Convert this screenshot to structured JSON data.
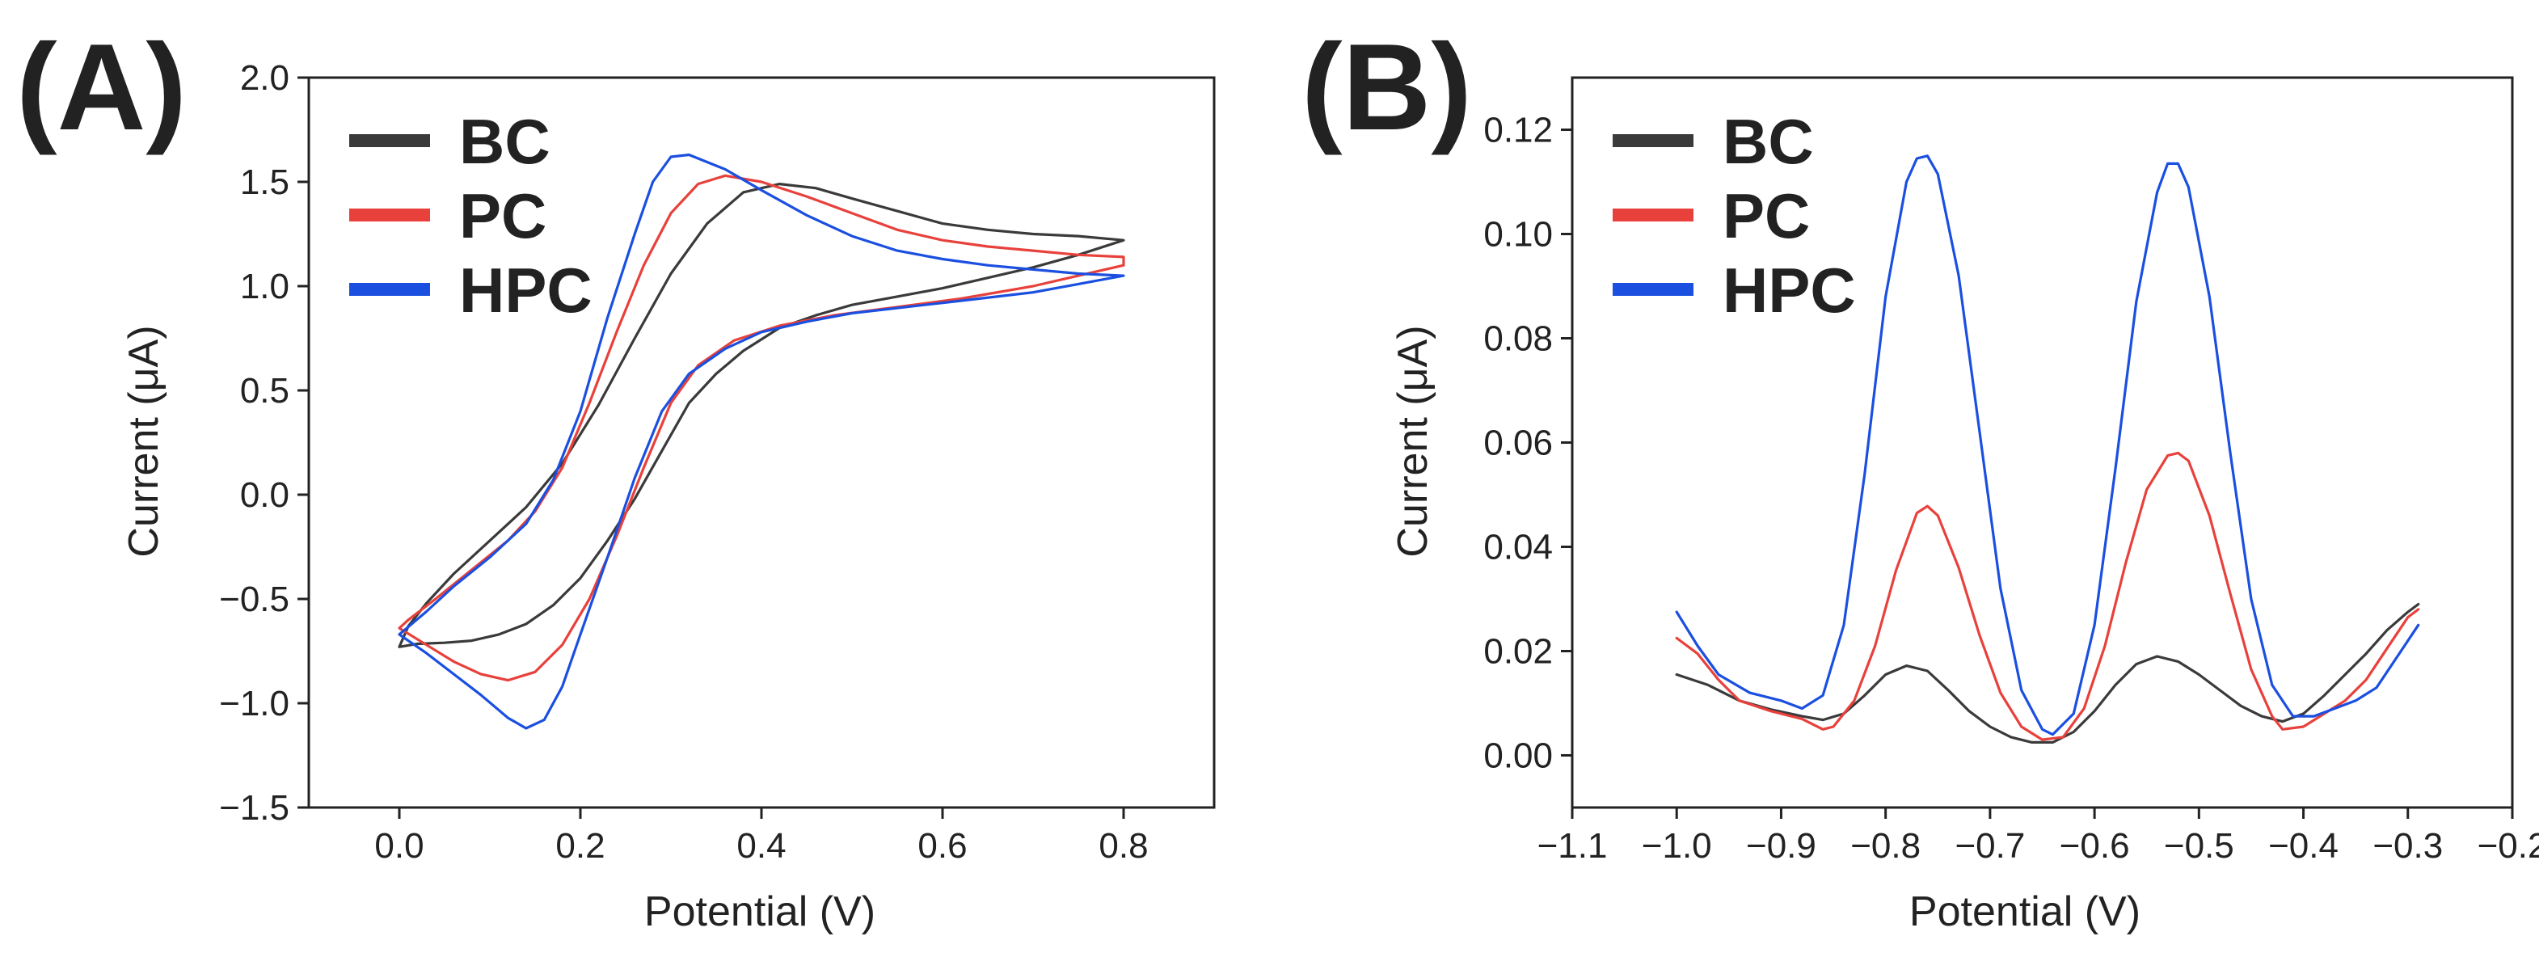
{
  "chart_data": [
    {
      "panel_label": "(A)",
      "type": "line",
      "xlabel": "Potential (V)",
      "ylabel": "Current (μA)",
      "xlim": [
        -0.1,
        0.9
      ],
      "ylim": [
        -1.5,
        2.0
      ],
      "xticks": [
        0.0,
        0.2,
        0.4,
        0.6,
        0.8
      ],
      "xtick_labels": [
        "0.0",
        "0.2",
        "0.4",
        "0.6",
        "0.8"
      ],
      "yticks": [
        -1.5,
        -1.0,
        -0.5,
        0.0,
        0.5,
        1.0,
        1.5,
        2.0
      ],
      "ytick_labels": [
        "−1.5",
        "−1.0",
        "−0.5",
        "0.0",
        "0.5",
        "1.0",
        "1.5",
        "2.0"
      ],
      "grid": false,
      "legend_position": "top-left",
      "series": [
        {
          "name": "BC",
          "color": "#3a3a3a",
          "points": [
            [
              0.0,
              -0.73
            ],
            [
              0.02,
              -0.715
            ],
            [
              0.05,
              -0.71
            ],
            [
              0.08,
              -0.7
            ],
            [
              0.11,
              -0.67
            ],
            [
              0.14,
              -0.62
            ],
            [
              0.17,
              -0.53
            ],
            [
              0.2,
              -0.4
            ],
            [
              0.23,
              -0.22
            ],
            [
              0.26,
              -0.02
            ],
            [
              0.29,
              0.21
            ],
            [
              0.32,
              0.44
            ],
            [
              0.35,
              0.58
            ],
            [
              0.38,
              0.69
            ],
            [
              0.42,
              0.8
            ],
            [
              0.46,
              0.86
            ],
            [
              0.5,
              0.91
            ],
            [
              0.55,
              0.95
            ],
            [
              0.6,
              0.99
            ],
            [
              0.65,
              1.04
            ],
            [
              0.7,
              1.09
            ],
            [
              0.75,
              1.15
            ],
            [
              0.8,
              1.22
            ],
            [
              0.8,
              1.22
            ],
            [
              0.75,
              1.24
            ],
            [
              0.7,
              1.25
            ],
            [
              0.65,
              1.27
            ],
            [
              0.6,
              1.3
            ],
            [
              0.55,
              1.36
            ],
            [
              0.5,
              1.42
            ],
            [
              0.46,
              1.47
            ],
            [
              0.42,
              1.49
            ],
            [
              0.38,
              1.45
            ],
            [
              0.34,
              1.3
            ],
            [
              0.3,
              1.06
            ],
            [
              0.26,
              0.75
            ],
            [
              0.22,
              0.43
            ],
            [
              0.18,
              0.15
            ],
            [
              0.14,
              -0.06
            ],
            [
              0.1,
              -0.22
            ],
            [
              0.06,
              -0.38
            ],
            [
              0.03,
              -0.52
            ],
            [
              0.01,
              -0.63
            ],
            [
              0.0,
              -0.73
            ]
          ]
        },
        {
          "name": "PC",
          "color": "#e8413c",
          "points": [
            [
              0.0,
              -0.64
            ],
            [
              0.03,
              -0.72
            ],
            [
              0.06,
              -0.8
            ],
            [
              0.09,
              -0.86
            ],
            [
              0.12,
              -0.89
            ],
            [
              0.15,
              -0.85
            ],
            [
              0.18,
              -0.72
            ],
            [
              0.21,
              -0.5
            ],
            [
              0.24,
              -0.2
            ],
            [
              0.27,
              0.13
            ],
            [
              0.3,
              0.44
            ],
            [
              0.33,
              0.62
            ],
            [
              0.37,
              0.74
            ],
            [
              0.42,
              0.81
            ],
            [
              0.48,
              0.86
            ],
            [
              0.55,
              0.9
            ],
            [
              0.62,
              0.94
            ],
            [
              0.7,
              1.0
            ],
            [
              0.75,
              1.05
            ],
            [
              0.8,
              1.1
            ],
            [
              0.8,
              1.14
            ],
            [
              0.75,
              1.15
            ],
            [
              0.7,
              1.17
            ],
            [
              0.65,
              1.19
            ],
            [
              0.6,
              1.22
            ],
            [
              0.55,
              1.27
            ],
            [
              0.5,
              1.35
            ],
            [
              0.45,
              1.43
            ],
            [
              0.4,
              1.5
            ],
            [
              0.36,
              1.53
            ],
            [
              0.33,
              1.49
            ],
            [
              0.3,
              1.35
            ],
            [
              0.27,
              1.1
            ],
            [
              0.24,
              0.78
            ],
            [
              0.21,
              0.44
            ],
            [
              0.18,
              0.13
            ],
            [
              0.15,
              -0.08
            ],
            [
              0.12,
              -0.22
            ],
            [
              0.08,
              -0.36
            ],
            [
              0.04,
              -0.5
            ],
            [
              0.01,
              -0.6
            ],
            [
              0.0,
              -0.64
            ]
          ]
        },
        {
          "name": "HPC",
          "color": "#1a4fe0",
          "points": [
            [
              0.0,
              -0.67
            ],
            [
              0.03,
              -0.76
            ],
            [
              0.06,
              -0.86
            ],
            [
              0.09,
              -0.96
            ],
            [
              0.12,
              -1.07
            ],
            [
              0.14,
              -1.12
            ],
            [
              0.16,
              -1.08
            ],
            [
              0.18,
              -0.92
            ],
            [
              0.2,
              -0.67
            ],
            [
              0.23,
              -0.3
            ],
            [
              0.26,
              0.08
            ],
            [
              0.29,
              0.4
            ],
            [
              0.32,
              0.58
            ],
            [
              0.36,
              0.7
            ],
            [
              0.4,
              0.78
            ],
            [
              0.45,
              0.83
            ],
            [
              0.5,
              0.87
            ],
            [
              0.56,
              0.9
            ],
            [
              0.62,
              0.93
            ],
            [
              0.7,
              0.97
            ],
            [
              0.75,
              1.01
            ],
            [
              0.8,
              1.05
            ],
            [
              0.8,
              1.05
            ],
            [
              0.75,
              1.06
            ],
            [
              0.7,
              1.08
            ],
            [
              0.65,
              1.1
            ],
            [
              0.6,
              1.13
            ],
            [
              0.55,
              1.17
            ],
            [
              0.5,
              1.24
            ],
            [
              0.45,
              1.34
            ],
            [
              0.4,
              1.46
            ],
            [
              0.36,
              1.56
            ],
            [
              0.32,
              1.63
            ],
            [
              0.3,
              1.62
            ],
            [
              0.28,
              1.5
            ],
            [
              0.26,
              1.25
            ],
            [
              0.23,
              0.85
            ],
            [
              0.2,
              0.4
            ],
            [
              0.17,
              0.07
            ],
            [
              0.14,
              -0.14
            ],
            [
              0.1,
              -0.3
            ],
            [
              0.06,
              -0.44
            ],
            [
              0.03,
              -0.56
            ],
            [
              0.0,
              -0.67
            ]
          ]
        }
      ]
    },
    {
      "panel_label": "(B)",
      "type": "line",
      "xlabel": "Potential (V)",
      "ylabel": "Current (μA)",
      "xlim": [
        -1.1,
        -0.2
      ],
      "ylim": [
        -0.01,
        0.13
      ],
      "xticks": [
        -1.1,
        -1.0,
        -0.9,
        -0.8,
        -0.7,
        -0.6,
        -0.5,
        -0.4,
        -0.3,
        -0.2
      ],
      "xtick_labels": [
        "−1.1",
        "−1.0",
        "−0.9",
        "−0.8",
        "−0.7",
        "−0.6",
        "−0.5",
        "−0.4",
        "−0.3",
        "−0.2"
      ],
      "yticks": [
        0.0,
        0.02,
        0.04,
        0.06,
        0.08,
        0.1,
        0.12
      ],
      "ytick_labels": [
        "0.00",
        "0.02",
        "0.04",
        "0.06",
        "0.08",
        "0.10",
        "0.12"
      ],
      "grid": false,
      "legend_position": "top-left",
      "series": [
        {
          "name": "BC",
          "color": "#3a3a3a",
          "points": [
            [
              -1.0,
              0.0155
            ],
            [
              -0.97,
              0.0135
            ],
            [
              -0.94,
              0.0105
            ],
            [
              -0.91,
              0.0088
            ],
            [
              -0.88,
              0.0075
            ],
            [
              -0.86,
              0.0068
            ],
            [
              -0.84,
              0.008
            ],
            [
              -0.82,
              0.0115
            ],
            [
              -0.8,
              0.0155
            ],
            [
              -0.78,
              0.0172
            ],
            [
              -0.76,
              0.0162
            ],
            [
              -0.74,
              0.0125
            ],
            [
              -0.72,
              0.0085
            ],
            [
              -0.7,
              0.0055
            ],
            [
              -0.68,
              0.0035
            ],
            [
              -0.66,
              0.0025
            ],
            [
              -0.64,
              0.0025
            ],
            [
              -0.62,
              0.0045
            ],
            [
              -0.6,
              0.0085
            ],
            [
              -0.58,
              0.0135
            ],
            [
              -0.56,
              0.0175
            ],
            [
              -0.54,
              0.019
            ],
            [
              -0.52,
              0.018
            ],
            [
              -0.5,
              0.0155
            ],
            [
              -0.48,
              0.0125
            ],
            [
              -0.46,
              0.0095
            ],
            [
              -0.44,
              0.0075
            ],
            [
              -0.42,
              0.0065
            ],
            [
              -0.4,
              0.008
            ],
            [
              -0.38,
              0.0115
            ],
            [
              -0.36,
              0.0155
            ],
            [
              -0.34,
              0.0195
            ],
            [
              -0.32,
              0.024
            ],
            [
              -0.3,
              0.0275
            ],
            [
              -0.29,
              0.029
            ]
          ]
        },
        {
          "name": "PC",
          "color": "#e8413c",
          "points": [
            [
              -1.0,
              0.0225
            ],
            [
              -0.98,
              0.0195
            ],
            [
              -0.96,
              0.0145
            ],
            [
              -0.94,
              0.0105
            ],
            [
              -0.91,
              0.0085
            ],
            [
              -0.88,
              0.007
            ],
            [
              -0.86,
              0.005
            ],
            [
              -0.85,
              0.0055
            ],
            [
              -0.83,
              0.0105
            ],
            [
              -0.81,
              0.021
            ],
            [
              -0.79,
              0.0355
            ],
            [
              -0.77,
              0.0465
            ],
            [
              -0.76,
              0.0478
            ],
            [
              -0.75,
              0.046
            ],
            [
              -0.73,
              0.036
            ],
            [
              -0.71,
              0.023
            ],
            [
              -0.69,
              0.012
            ],
            [
              -0.67,
              0.0055
            ],
            [
              -0.65,
              0.003
            ],
            [
              -0.63,
              0.0035
            ],
            [
              -0.61,
              0.009
            ],
            [
              -0.59,
              0.021
            ],
            [
              -0.57,
              0.037
            ],
            [
              -0.55,
              0.051
            ],
            [
              -0.53,
              0.0575
            ],
            [
              -0.52,
              0.058
            ],
            [
              -0.51,
              0.0565
            ],
            [
              -0.49,
              0.046
            ],
            [
              -0.47,
              0.031
            ],
            [
              -0.45,
              0.0165
            ],
            [
              -0.43,
              0.0075
            ],
            [
              -0.42,
              0.005
            ],
            [
              -0.4,
              0.0055
            ],
            [
              -0.38,
              0.008
            ],
            [
              -0.36,
              0.0105
            ],
            [
              -0.34,
              0.0145
            ],
            [
              -0.32,
              0.0205
            ],
            [
              -0.3,
              0.0265
            ],
            [
              -0.29,
              0.028
            ]
          ]
        },
        {
          "name": "HPC",
          "color": "#1a4fe0",
          "points": [
            [
              -1.0,
              0.0275
            ],
            [
              -0.98,
              0.021
            ],
            [
              -0.96,
              0.0155
            ],
            [
              -0.93,
              0.012
            ],
            [
              -0.9,
              0.0105
            ],
            [
              -0.88,
              0.009
            ],
            [
              -0.86,
              0.0115
            ],
            [
              -0.84,
              0.025
            ],
            [
              -0.82,
              0.054
            ],
            [
              -0.8,
              0.088
            ],
            [
              -0.78,
              0.11
            ],
            [
              -0.77,
              0.1145
            ],
            [
              -0.76,
              0.115
            ],
            [
              -0.75,
              0.1115
            ],
            [
              -0.73,
              0.092
            ],
            [
              -0.71,
              0.062
            ],
            [
              -0.69,
              0.032
            ],
            [
              -0.67,
              0.0125
            ],
            [
              -0.65,
              0.005
            ],
            [
              -0.64,
              0.004
            ],
            [
              -0.62,
              0.008
            ],
            [
              -0.6,
              0.025
            ],
            [
              -0.58,
              0.055
            ],
            [
              -0.56,
              0.087
            ],
            [
              -0.54,
              0.108
            ],
            [
              -0.53,
              0.1135
            ],
            [
              -0.52,
              0.1135
            ],
            [
              -0.51,
              0.109
            ],
            [
              -0.49,
              0.088
            ],
            [
              -0.47,
              0.058
            ],
            [
              -0.45,
              0.03
            ],
            [
              -0.43,
              0.0135
            ],
            [
              -0.41,
              0.0075
            ],
            [
              -0.39,
              0.0075
            ],
            [
              -0.37,
              0.009
            ],
            [
              -0.35,
              0.0105
            ],
            [
              -0.33,
              0.013
            ],
            [
              -0.31,
              0.019
            ],
            [
              -0.29,
              0.025
            ]
          ]
        }
      ]
    }
  ]
}
